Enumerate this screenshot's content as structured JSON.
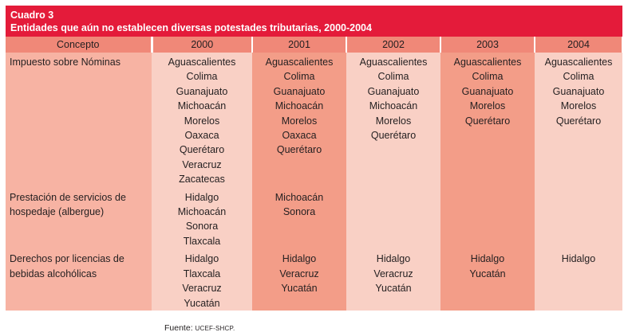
{
  "title": {
    "label": "Cuadro 3",
    "text": "Entidades que aún no establecen diversas potestades tributarias, 2000-2004"
  },
  "headers": [
    "Concepto",
    "2000",
    "2001",
    "2002",
    "2003",
    "2004"
  ],
  "rows": [
    {
      "concept": "Impuesto sobre Nóminas",
      "cells": [
        [
          "Aguascalientes",
          "Colima",
          "Guanajuato",
          "Michoacán",
          "Morelos",
          "Oaxaca",
          "Querétaro",
          "Veracruz",
          "Zacatecas"
        ],
        [
          "Aguascalientes",
          "Colima",
          "Guanajuato",
          "Michoacán",
          "Morelos",
          "Oaxaca",
          "Querétaro"
        ],
        [
          "Aguascalientes",
          "Colima",
          "Guanajuato",
          "Michoacán",
          "Morelos",
          "Querétaro"
        ],
        [
          "Aguascalientes",
          "Colima",
          "Guanajuato",
          "Morelos",
          "Querétaro"
        ],
        [
          "Aguascalientes",
          "Colima",
          "Guanajuato",
          "Morelos",
          "Querétaro"
        ]
      ]
    },
    {
      "concept": "Prestación de servicios de hospedaje (albergue)",
      "cells": [
        [
          "Hidalgo",
          "Michoacán",
          "Sonora",
          "Tlaxcala"
        ],
        [
          "Michoacán",
          "Sonora"
        ],
        [],
        [],
        []
      ]
    },
    {
      "concept": "Derechos por licencias de bebidas alcohólicas",
      "cells": [
        [
          "Hidalgo",
          "Tlaxcala",
          "Veracruz",
          "Yucatán"
        ],
        [
          "Hidalgo",
          "Veracruz",
          "Yucatán"
        ],
        [
          "Hidalgo",
          "Veracruz",
          "Yucatán"
        ],
        [
          "Hidalgo",
          "Yucatán"
        ],
        [
          "Hidalgo"
        ]
      ]
    }
  ],
  "source": {
    "label": "Fuente:",
    "value": "UCEF-SHCP."
  }
}
